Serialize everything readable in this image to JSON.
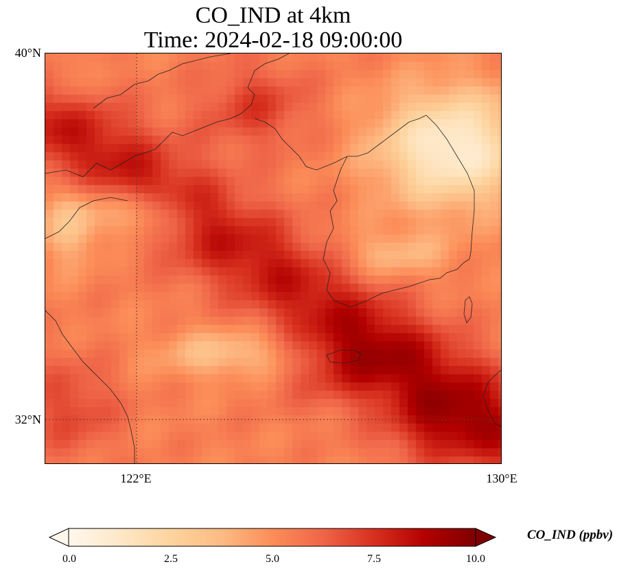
{
  "title": {
    "line1": "CO_IND at 4km",
    "line2": "Time: 2024-02-18 09:00:00"
  },
  "map": {
    "variable": "CO_IND",
    "lat_ticks": [
      "40°N",
      "32°N"
    ],
    "lon_ticks": [
      "122°E",
      "130°E"
    ],
    "lat_range": [
      31,
      40
    ],
    "lon_range": [
      120,
      130
    ],
    "gridlines": "dotted",
    "colormap": "OrRd"
  },
  "colorbar": {
    "label": "CO_IND (ppbv)",
    "ticks": [
      "0.0",
      "2.5",
      "5.0",
      "7.5",
      "10.0"
    ],
    "range": [
      0,
      10
    ],
    "extend": "both",
    "colors": [
      "#fff7ec",
      "#fee8c8",
      "#fdd49e",
      "#fdbb84",
      "#fc8d59",
      "#ef6548",
      "#d7301f",
      "#b30000",
      "#7f0000"
    ]
  }
}
